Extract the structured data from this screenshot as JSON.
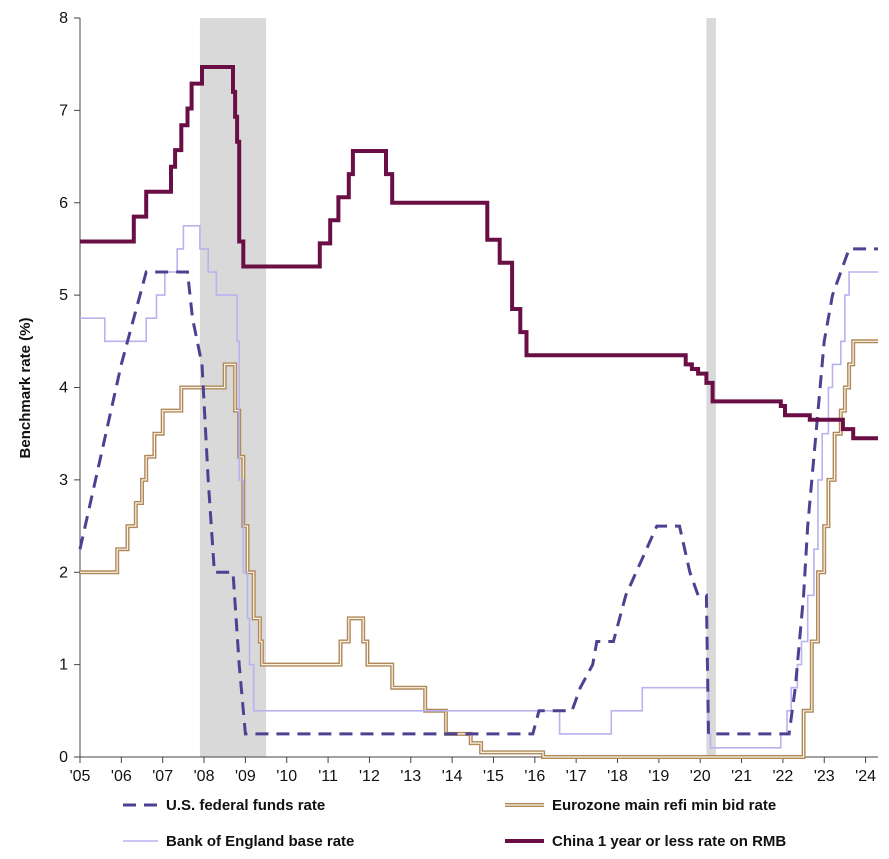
{
  "chart_data": {
    "type": "line",
    "title": "",
    "xlabel": "",
    "ylabel": "Benchmark rate (%)",
    "xlim": [
      2005.0,
      2024.3
    ],
    "ylim": [
      0,
      8
    ],
    "x_ticks": [
      2005,
      2006,
      2007,
      2008,
      2009,
      2010,
      2011,
      2012,
      2013,
      2014,
      2015,
      2016,
      2017,
      2018,
      2019,
      2020,
      2021,
      2022,
      2023,
      2024
    ],
    "x_tick_labels": [
      "'05",
      "'06",
      "'07",
      "'08",
      "'09",
      "'10",
      "'11",
      "'12",
      "'13",
      "'14",
      "'15",
      "'16",
      "'17",
      "'18",
      "'19",
      "'20",
      "'21",
      "'22",
      "'23",
      "'24"
    ],
    "y_ticks": [
      0,
      1,
      2,
      3,
      4,
      5,
      6,
      7,
      8
    ],
    "y_tick_labels": [
      "0",
      "1",
      "2",
      "3",
      "4",
      "5",
      "6",
      "7",
      "8"
    ],
    "recessions": [
      [
        2007.9,
        2009.5
      ],
      [
        2020.15,
        2020.38
      ]
    ],
    "recession_color": "#d9d9d9",
    "grid": false,
    "legend_position": "bottom",
    "series": [
      {
        "name": "U.S. federal funds rate",
        "color": "#4b4391",
        "style": "dashed",
        "step": false,
        "points": [
          [
            2005.0,
            2.25
          ],
          [
            2005.5,
            3.25
          ],
          [
            2006.0,
            4.25
          ],
          [
            2006.45,
            5.0
          ],
          [
            2006.6,
            5.25
          ],
          [
            2007.6,
            5.25
          ],
          [
            2007.72,
            4.75
          ],
          [
            2007.95,
            4.25
          ],
          [
            2008.1,
            3.0
          ],
          [
            2008.25,
            2.0
          ],
          [
            2008.7,
            2.0
          ],
          [
            2008.85,
            1.0
          ],
          [
            2009.0,
            0.25
          ],
          [
            2015.95,
            0.25
          ],
          [
            2016.1,
            0.5
          ],
          [
            2016.9,
            0.5
          ],
          [
            2017.1,
            0.75
          ],
          [
            2017.4,
            1.0
          ],
          [
            2017.5,
            1.25
          ],
          [
            2017.9,
            1.25
          ],
          [
            2018.2,
            1.75
          ],
          [
            2018.45,
            2.0
          ],
          [
            2018.7,
            2.25
          ],
          [
            2018.95,
            2.5
          ],
          [
            2019.5,
            2.5
          ],
          [
            2019.75,
            2.0
          ],
          [
            2019.95,
            1.75
          ],
          [
            2020.15,
            1.75
          ],
          [
            2020.2,
            0.25
          ],
          [
            2022.15,
            0.25
          ],
          [
            2022.3,
            0.75
          ],
          [
            2022.5,
            1.75
          ],
          [
            2022.6,
            2.5
          ],
          [
            2022.75,
            3.25
          ],
          [
            2022.9,
            4.0
          ],
          [
            2023.0,
            4.5
          ],
          [
            2023.2,
            5.0
          ],
          [
            2023.4,
            5.25
          ],
          [
            2023.6,
            5.5
          ],
          [
            2024.3,
            5.5
          ]
        ]
      },
      {
        "name": "Eurozone main refi min bid rate",
        "color": "#b0895a",
        "style": "double",
        "step": true,
        "points": [
          [
            2005.0,
            2.0
          ],
          [
            2005.9,
            2.25
          ],
          [
            2006.15,
            2.5
          ],
          [
            2006.35,
            2.75
          ],
          [
            2006.5,
            3.0
          ],
          [
            2006.6,
            3.25
          ],
          [
            2006.8,
            3.5
          ],
          [
            2007.0,
            3.75
          ],
          [
            2007.45,
            4.0
          ],
          [
            2008.5,
            4.25
          ],
          [
            2008.75,
            3.75
          ],
          [
            2008.85,
            3.25
          ],
          [
            2008.95,
            2.5
          ],
          [
            2009.05,
            2.0
          ],
          [
            2009.2,
            1.5
          ],
          [
            2009.35,
            1.25
          ],
          [
            2009.4,
            1.0
          ],
          [
            2011.3,
            1.25
          ],
          [
            2011.5,
            1.5
          ],
          [
            2011.85,
            1.25
          ],
          [
            2011.95,
            1.0
          ],
          [
            2012.55,
            0.75
          ],
          [
            2013.35,
            0.5
          ],
          [
            2013.85,
            0.25
          ],
          [
            2014.45,
            0.15
          ],
          [
            2014.7,
            0.05
          ],
          [
            2016.2,
            0.0
          ],
          [
            2022.5,
            0.5
          ],
          [
            2022.7,
            1.25
          ],
          [
            2022.85,
            2.0
          ],
          [
            2023.0,
            2.5
          ],
          [
            2023.1,
            3.0
          ],
          [
            2023.25,
            3.5
          ],
          [
            2023.4,
            3.75
          ],
          [
            2023.5,
            4.0
          ],
          [
            2023.6,
            4.25
          ],
          [
            2023.7,
            4.5
          ],
          [
            2024.3,
            4.5
          ]
        ]
      },
      {
        "name": "Bank of England base rate",
        "color": "#b7b3ef",
        "style": "solid",
        "step": true,
        "points": [
          [
            2005.0,
            4.75
          ],
          [
            2005.6,
            4.5
          ],
          [
            2006.6,
            4.75
          ],
          [
            2006.85,
            5.0
          ],
          [
            2007.05,
            5.25
          ],
          [
            2007.35,
            5.5
          ],
          [
            2007.5,
            5.75
          ],
          [
            2007.9,
            5.5
          ],
          [
            2008.1,
            5.25
          ],
          [
            2008.3,
            5.0
          ],
          [
            2008.8,
            4.5
          ],
          [
            2008.85,
            3.0
          ],
          [
            2008.95,
            2.0
          ],
          [
            2009.05,
            1.5
          ],
          [
            2009.1,
            1.0
          ],
          [
            2009.2,
            0.5
          ],
          [
            2016.6,
            0.25
          ],
          [
            2017.85,
            0.5
          ],
          [
            2018.6,
            0.75
          ],
          [
            2020.2,
            0.25
          ],
          [
            2020.25,
            0.1
          ],
          [
            2021.95,
            0.25
          ],
          [
            2022.1,
            0.5
          ],
          [
            2022.2,
            0.75
          ],
          [
            2022.35,
            1.0
          ],
          [
            2022.45,
            1.25
          ],
          [
            2022.6,
            1.75
          ],
          [
            2022.75,
            2.25
          ],
          [
            2022.85,
            3.0
          ],
          [
            2022.95,
            3.5
          ],
          [
            2023.1,
            4.0
          ],
          [
            2023.2,
            4.25
          ],
          [
            2023.4,
            4.5
          ],
          [
            2023.5,
            5.0
          ],
          [
            2023.6,
            5.25
          ],
          [
            2024.3,
            5.25
          ]
        ]
      },
      {
        "name": "China 1 year or less rate on RMB",
        "color": "#6a0f45",
        "style": "solid",
        "step": true,
        "points": [
          [
            2005.0,
            5.58
          ],
          [
            2006.3,
            5.85
          ],
          [
            2006.6,
            6.12
          ],
          [
            2007.2,
            6.39
          ],
          [
            2007.3,
            6.57
          ],
          [
            2007.45,
            6.84
          ],
          [
            2007.6,
            7.02
          ],
          [
            2007.7,
            7.29
          ],
          [
            2007.95,
            7.47
          ],
          [
            2008.7,
            7.2
          ],
          [
            2008.75,
            6.93
          ],
          [
            2008.8,
            6.66
          ],
          [
            2008.85,
            5.58
          ],
          [
            2008.95,
            5.31
          ],
          [
            2010.8,
            5.56
          ],
          [
            2011.05,
            5.81
          ],
          [
            2011.25,
            6.06
          ],
          [
            2011.5,
            6.31
          ],
          [
            2011.6,
            6.56
          ],
          [
            2012.4,
            6.31
          ],
          [
            2012.55,
            6.0
          ],
          [
            2014.85,
            5.6
          ],
          [
            2015.15,
            5.35
          ],
          [
            2015.45,
            4.85
          ],
          [
            2015.65,
            4.6
          ],
          [
            2015.8,
            4.35
          ],
          [
            2019.65,
            4.25
          ],
          [
            2019.8,
            4.2
          ],
          [
            2019.95,
            4.15
          ],
          [
            2020.15,
            4.05
          ],
          [
            2020.3,
            3.85
          ],
          [
            2021.95,
            3.8
          ],
          [
            2022.05,
            3.7
          ],
          [
            2022.65,
            3.65
          ],
          [
            2023.45,
            3.55
          ],
          [
            2023.7,
            3.45
          ],
          [
            2024.3,
            3.45
          ]
        ]
      }
    ]
  }
}
